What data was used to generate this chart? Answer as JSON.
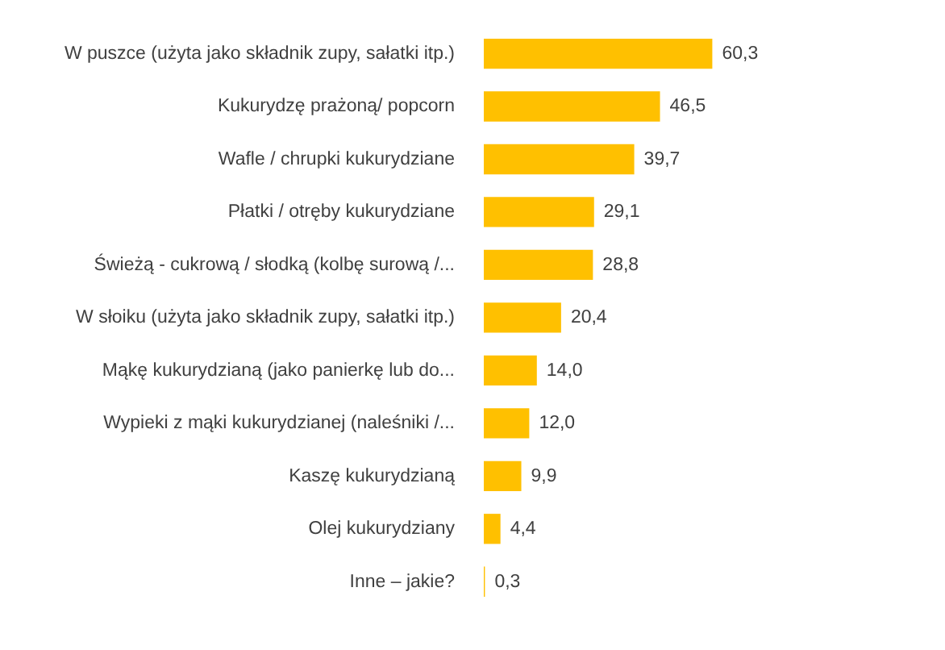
{
  "chart_data": {
    "type": "bar",
    "orientation": "horizontal",
    "tick_labels": "y",
    "categories": [
      "W puszce (użyta jako składnik zupy, sałatki itp.)",
      "Kukurydzę prażoną/ popcorn",
      "Wafle / chrupki kukurydziane",
      "Płatki / otręby kukurydziane",
      "Świeżą - cukrową / słodką (kolbę surową /...",
      "W słoiku (użyta jako składnik zupy, sałatki itp.)",
      "Mąkę kukurydzianą (jako panierkę lub do...",
      "Wypieki z mąki kukurydzianej (naleśniki /...",
      "Kaszę kukurydzianą",
      "Olej kukurydziany",
      "Inne – jakie?"
    ],
    "values": [
      60.3,
      46.5,
      39.7,
      29.1,
      28.8,
      20.4,
      14.0,
      12.0,
      9.9,
      4.4,
      0.3
    ],
    "value_labels": [
      "60,3",
      "46,5",
      "39,7",
      "29,1",
      "28,8",
      "20,4",
      "14,0",
      "12,0",
      "9,9",
      "4,4",
      "0,3"
    ],
    "color": "#ffc000"
  }
}
